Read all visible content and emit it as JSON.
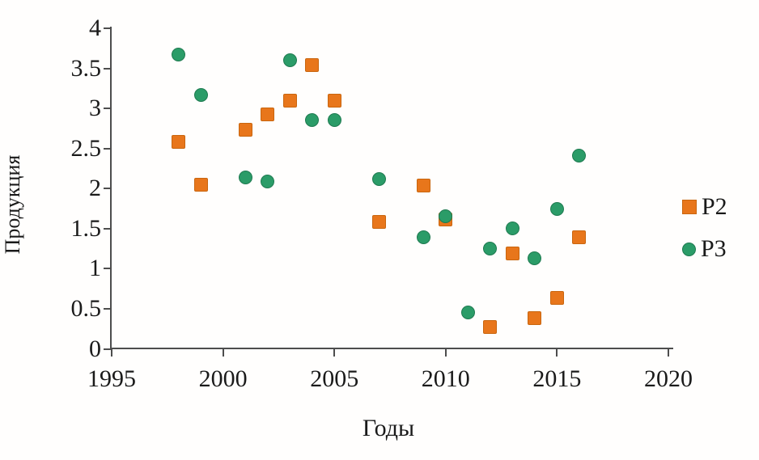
{
  "chart_data": {
    "type": "scatter",
    "title": "",
    "xlabel": "Годы",
    "ylabel": "Продукция",
    "xlim": [
      1995,
      2020
    ],
    "ylim": [
      0,
      4
    ],
    "x_ticks": [
      1995,
      2000,
      2005,
      2010,
      2015,
      2020
    ],
    "y_ticks": [
      0,
      0.5,
      1,
      1.5,
      2,
      2.5,
      3,
      3.5,
      4
    ],
    "grid": false,
    "legend_position": "right",
    "colors": {
      "axis": "#4d4d4d",
      "text": "#1a1a1a",
      "background": "#ffffff"
    },
    "series": [
      {
        "name": "P2",
        "marker": "square",
        "color": "#E8761B",
        "border_color": "#c9660f",
        "points": [
          [
            1998,
            2.58
          ],
          [
            1999,
            2.05
          ],
          [
            2001,
            2.73
          ],
          [
            2002,
            2.93
          ],
          [
            2003,
            3.1
          ],
          [
            2004,
            3.54
          ],
          [
            2005,
            3.1
          ],
          [
            2007,
            1.58
          ],
          [
            2009,
            2.04
          ],
          [
            2010,
            1.61
          ],
          [
            2012,
            0.27
          ],
          [
            2013,
            1.19
          ],
          [
            2014,
            0.38
          ],
          [
            2015,
            0.64
          ],
          [
            2016,
            1.39
          ]
        ]
      },
      {
        "name": "P3",
        "marker": "circle",
        "color": "#2B9C68",
        "border_color": "#1f7a50",
        "points": [
          [
            1998,
            3.67
          ],
          [
            1999,
            3.17
          ],
          [
            2001,
            2.14
          ],
          [
            2002,
            2.09
          ],
          [
            2003,
            3.6
          ],
          [
            2004,
            2.86
          ],
          [
            2005,
            2.86
          ],
          [
            2007,
            2.12
          ],
          [
            2009,
            1.39
          ],
          [
            2010,
            1.65
          ],
          [
            2011,
            0.45
          ],
          [
            2012,
            1.25
          ],
          [
            2013,
            1.5
          ],
          [
            2014,
            1.13
          ],
          [
            2015,
            1.75
          ],
          [
            2016,
            2.41
          ]
        ]
      }
    ]
  }
}
